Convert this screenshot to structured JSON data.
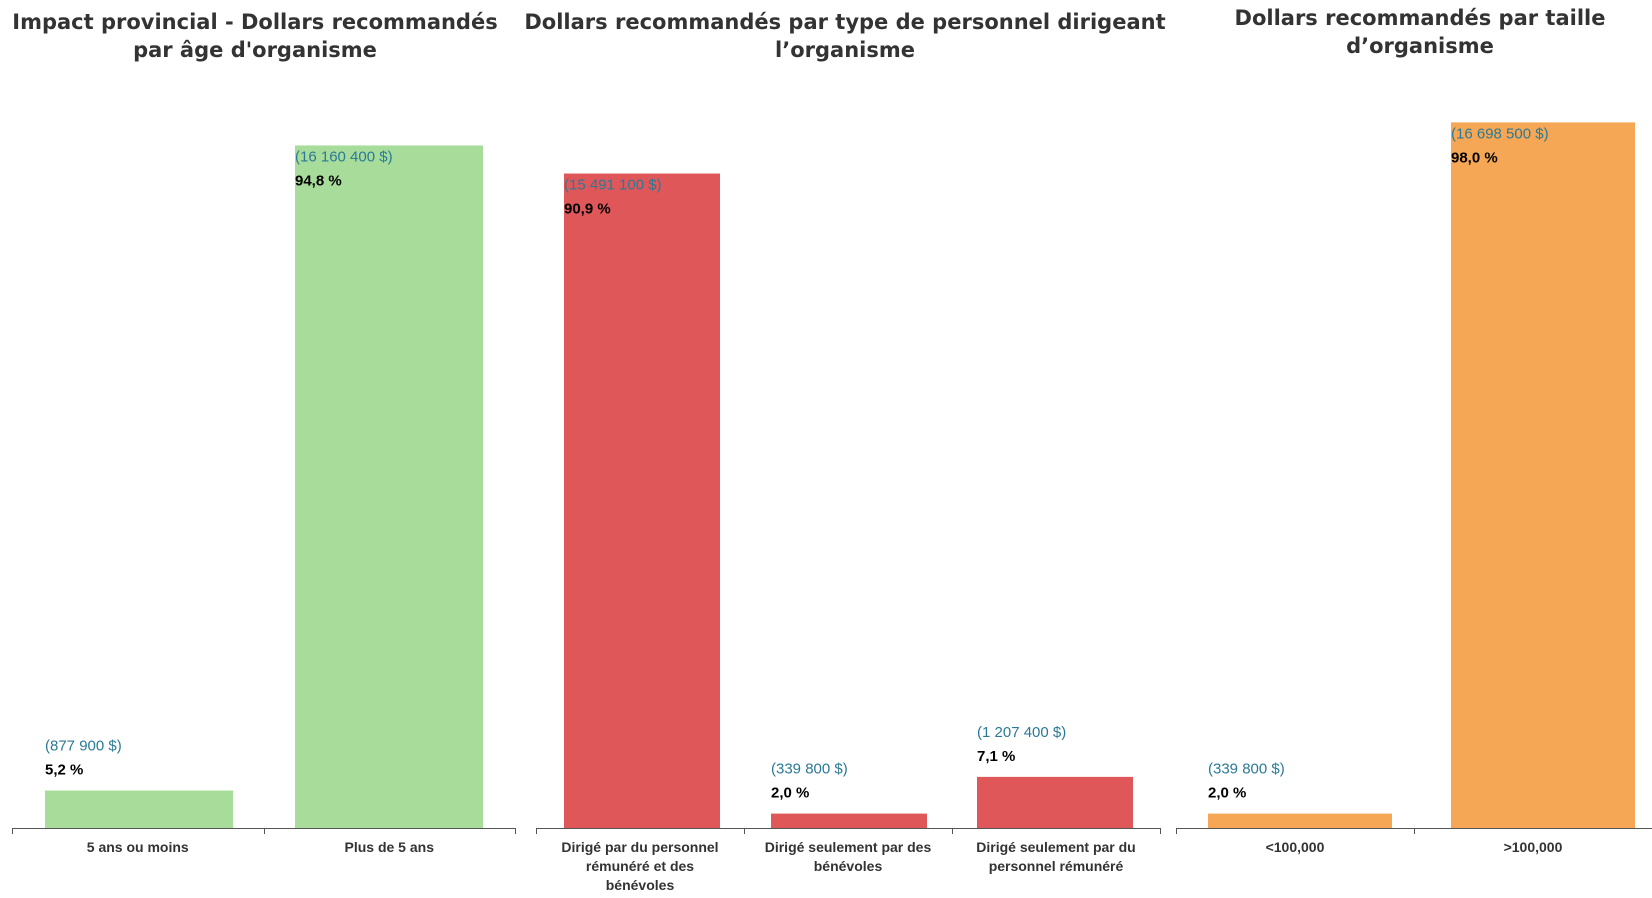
{
  "colors": {
    "green": "#a8dc9b",
    "red": "#e0575a",
    "orange": "#f6a755",
    "amount_text": "#2a7a95",
    "pct_text": "#000000",
    "axis": "#555555",
    "category_text": "#333333"
  },
  "chart_data": [
    {
      "type": "bar",
      "title": "Impact provincial - Dollars recommandés\npar âge d'organisme",
      "categories": [
        "5 ans ou moins",
        "Plus de 5 ans"
      ],
      "values": [
        5.2,
        94.8
      ],
      "amount_labels": [
        "(877 900 $)",
        "(16 160 400 $)"
      ],
      "value_labels": [
        "5,2 %",
        "94,8 %"
      ],
      "ylim": [
        0,
        100
      ],
      "color": "green",
      "grid": false
    },
    {
      "type": "bar",
      "title": "Dollars recommandés par type de personnel dirigeant\nl’organisme",
      "categories": [
        "Dirigé par du personnel\nrémunéré et des\nbénévoles",
        "Dirigé seulement par des\nbénévoles",
        "Dirigé seulement par du\npersonnel rémunéré"
      ],
      "values": [
        90.9,
        2.0,
        7.1
      ],
      "amount_labels": [
        "(15 491 100 $)",
        "(339 800 $)",
        "(1 207 400 $)"
      ],
      "value_labels": [
        "90,9 %",
        "2,0 %",
        "7,1 %"
      ],
      "ylim": [
        0,
        100
      ],
      "color": "red",
      "grid": false
    },
    {
      "type": "bar",
      "title": "Dollars recommandés par taille\nd’organisme",
      "categories": [
        "<100,000",
        ">100,000"
      ],
      "values": [
        2.0,
        98.0
      ],
      "amount_labels": [
        "(339 800 $)",
        "(16 698 500 $)"
      ],
      "value_labels": [
        "2,0 %",
        "98,0 %"
      ],
      "ylim": [
        0,
        100
      ],
      "color": "orange",
      "grid": false
    }
  ]
}
